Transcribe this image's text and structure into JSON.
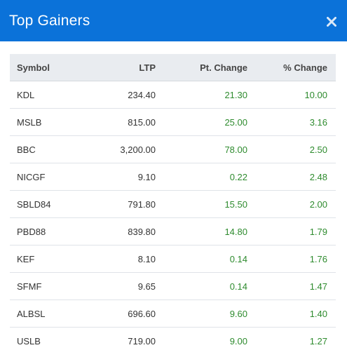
{
  "header": {
    "title": "Top Gainers",
    "close_icon": "close-icon"
  },
  "colors": {
    "header_bg": "#0b72d9",
    "table_header_bg": "#e9ecf0",
    "gain_text": "#2e8b2e"
  },
  "table": {
    "columns": [
      "Symbol",
      "LTP",
      "Pt. Change",
      "% Change"
    ],
    "rows": [
      {
        "symbol": "KDL",
        "ltp": "234.40",
        "pt_change": "21.30",
        "pct_change": "10.00"
      },
      {
        "symbol": "MSLB",
        "ltp": "815.00",
        "pt_change": "25.00",
        "pct_change": "3.16"
      },
      {
        "symbol": "BBC",
        "ltp": "3,200.00",
        "pt_change": "78.00",
        "pct_change": "2.50"
      },
      {
        "symbol": "NICGF",
        "ltp": "9.10",
        "pt_change": "0.22",
        "pct_change": "2.48"
      },
      {
        "symbol": "SBLD84",
        "ltp": "791.80",
        "pt_change": "15.50",
        "pct_change": "2.00"
      },
      {
        "symbol": "PBD88",
        "ltp": "839.80",
        "pt_change": "14.80",
        "pct_change": "1.79"
      },
      {
        "symbol": "KEF",
        "ltp": "8.10",
        "pt_change": "0.14",
        "pct_change": "1.76"
      },
      {
        "symbol": "SFMF",
        "ltp": "9.65",
        "pt_change": "0.14",
        "pct_change": "1.47"
      },
      {
        "symbol": "ALBSL",
        "ltp": "696.60",
        "pt_change": "9.60",
        "pct_change": "1.40"
      },
      {
        "symbol": "USLB",
        "ltp": "719.00",
        "pt_change": "9.00",
        "pct_change": "1.27"
      }
    ]
  }
}
